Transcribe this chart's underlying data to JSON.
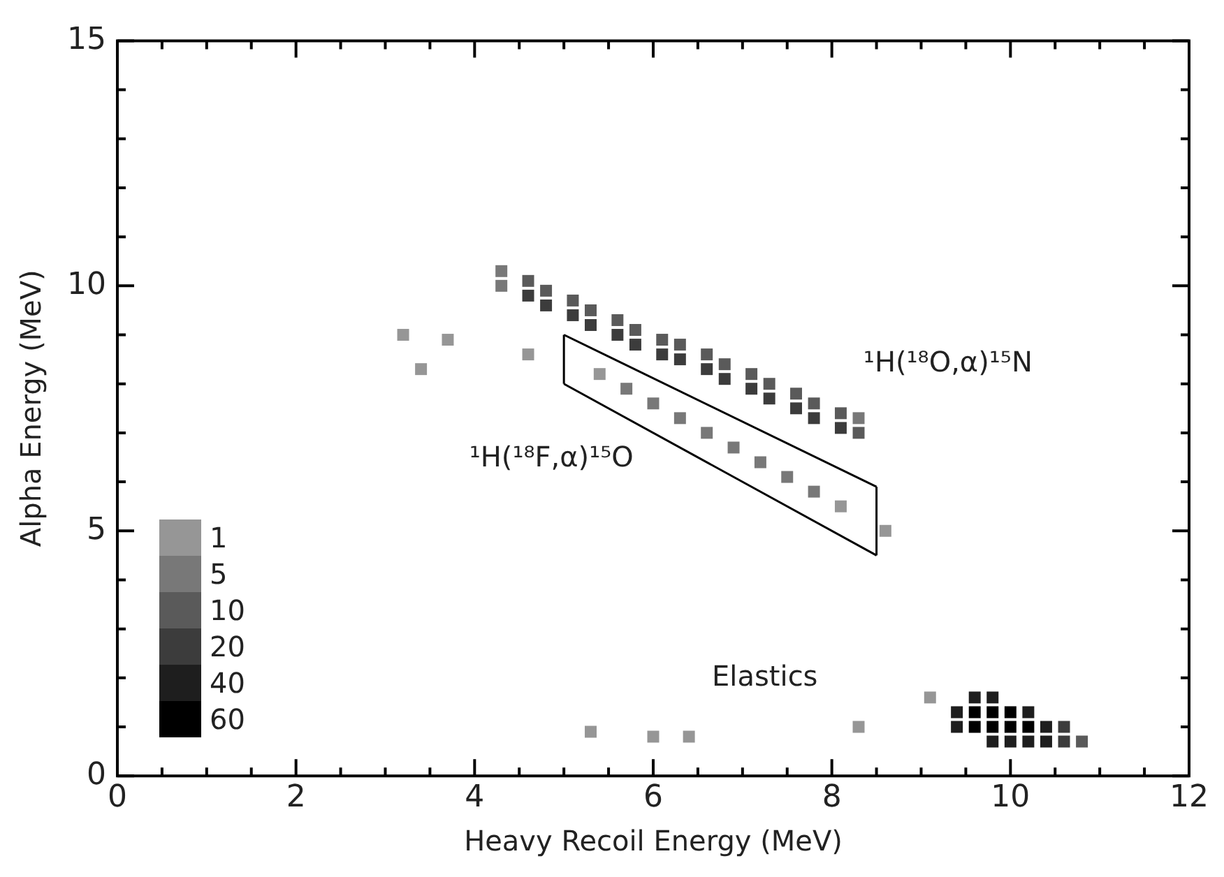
{
  "chart_data": {
    "type": "scatter",
    "xlabel": "Heavy Recoil Energy (MeV)",
    "ylabel": "Alpha Energy (MeV)",
    "marker": "square",
    "grid": false,
    "legend": "bottom left",
    "xlim": [
      0,
      12
    ],
    "ylim": [
      0,
      15
    ],
    "xticks": [
      0,
      {
        "value": 0.5,
        "label": null
      },
      {
        "value": 1,
        "label": null
      },
      {
        "value": 1.5,
        "label": null
      },
      2,
      {
        "value": 2.5,
        "label": null
      },
      {
        "value": 3,
        "label": null
      },
      {
        "value": 3.5,
        "label": null
      },
      4,
      {
        "value": 4.5,
        "label": null
      },
      {
        "value": 5,
        "label": null
      },
      {
        "value": 5.5,
        "label": null
      },
      6,
      {
        "value": 6.5,
        "label": null
      },
      {
        "value": 7,
        "label": null
      },
      {
        "value": 7.5,
        "label": null
      },
      8,
      {
        "value": 8.5,
        "label": null
      },
      {
        "value": 9,
        "label": null
      },
      {
        "value": 9.5,
        "label": null
      },
      10,
      {
        "value": 10.5,
        "label": null
      },
      {
        "value": 11,
        "label": null
      },
      {
        "value": 11.5,
        "label": null
      },
      12
    ],
    "yticks": [
      0,
      {
        "value": 1,
        "label": null
      },
      {
        "value": 2,
        "label": null
      },
      {
        "value": 3,
        "label": null
      },
      {
        "value": 4,
        "label": null
      },
      5,
      {
        "value": 6,
        "label": null
      },
      {
        "value": 7,
        "label": null
      },
      {
        "value": 8,
        "label": null
      },
      {
        "value": 9,
        "label": null
      },
      10,
      {
        "value": 11,
        "label": null
      },
      {
        "value": 12,
        "label": null
      },
      {
        "value": 13,
        "label": null
      },
      {
        "value": 14,
        "label": null
      },
      15
    ],
    "series": [
      {
        "name": "1",
        "color": "#969696",
        "x": [
          3.2,
          3.7,
          3.4,
          4.6,
          5.3,
          6.0,
          6.4,
          8.3,
          9.1,
          8.6,
          5.4,
          8.1
        ],
        "values": [
          9.0,
          8.9,
          8.3,
          8.6,
          0.9,
          0.8,
          0.8,
          1.0,
          1.6,
          5.0,
          8.2,
          5.5
        ]
      },
      {
        "name": "5",
        "color": "#787878",
        "x": [
          4.3,
          8.3,
          4.3,
          5.7,
          6.0,
          6.3,
          6.6,
          6.9,
          7.2,
          7.5,
          7.8
        ],
        "values": [
          10.3,
          7.3,
          10.0,
          7.9,
          7.6,
          7.3,
          7.0,
          6.7,
          6.4,
          6.1,
          5.8
        ]
      },
      {
        "name": "10",
        "color": "#5a5a5a",
        "x": [
          4.6,
          4.8,
          5.1,
          5.3,
          5.6,
          5.8,
          6.1,
          6.3,
          6.6,
          6.8,
          7.1,
          7.3,
          7.6,
          7.8,
          8.1,
          8.3,
          10.8
        ],
        "values": [
          10.1,
          9.9,
          9.7,
          9.5,
          9.3,
          9.1,
          8.9,
          8.8,
          8.6,
          8.4,
          8.2,
          8.0,
          7.8,
          7.6,
          7.4,
          7.0,
          0.7
        ]
      },
      {
        "name": "20",
        "color": "#3c3c3c",
        "x": [
          4.6,
          4.8,
          5.1,
          5.3,
          5.6,
          5.8,
          6.1,
          6.3,
          6.6,
          6.8,
          7.1,
          7.3,
          7.6,
          7.8,
          8.1,
          10.6,
          10.6
        ],
        "values": [
          9.8,
          9.6,
          9.4,
          9.2,
          9.0,
          8.8,
          8.6,
          8.5,
          8.3,
          8.1,
          7.9,
          7.7,
          7.5,
          7.3,
          7.1,
          1.0,
          0.7
        ]
      },
      {
        "name": "40",
        "color": "#1e1e1e",
        "x": [
          9.6,
          9.8,
          9.4,
          10.2,
          9.4,
          10.4,
          9.8,
          10.0,
          10.2,
          10.4
        ],
        "values": [
          1.6,
          1.6,
          1.3,
          1.3,
          1.0,
          1.0,
          0.7,
          0.7,
          0.7,
          0.7
        ]
      },
      {
        "name": "60",
        "color": "#000000",
        "x": [
          9.6,
          9.8,
          10.0,
          9.6,
          9.8,
          10.0,
          10.2
        ],
        "values": [
          1.3,
          1.3,
          1.3,
          1.0,
          1.0,
          1.0,
          1.0
        ]
      },
      {
        "type": "line",
        "color": "#000000",
        "marker": "none",
        "x": [
          5.0,
          8.5
        ],
        "values": [
          9.0,
          5.9
        ]
      },
      {
        "type": "line",
        "color": "#000000",
        "marker": "none",
        "x": [
          5.0,
          8.5
        ],
        "values": [
          8.0,
          4.5
        ]
      },
      {
        "type": "line",
        "color": "#000000",
        "marker": "none",
        "x": [
          5.0,
          5.0
        ],
        "values": [
          8.0,
          9.0
        ]
      },
      {
        "type": "line",
        "color": "#000000",
        "marker": "none",
        "x": [
          8.5,
          8.5
        ],
        "values": [
          4.5,
          5.9
        ]
      }
    ],
    "annotations": [
      "¹H(¹⁸O,α)¹⁵N",
      "¹H(¹⁸F,α)¹⁵O",
      "Elastics"
    ]
  }
}
